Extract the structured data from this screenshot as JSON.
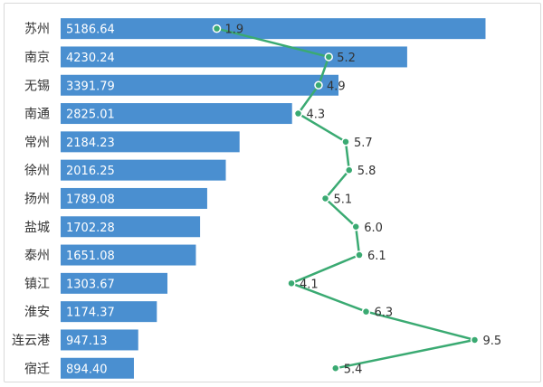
{
  "chart_data": {
    "type": "bar+line",
    "title": "",
    "categories": [
      "苏州",
      "南京",
      "无锡",
      "南通",
      "常州",
      "徐州",
      "扬州",
      "盐城",
      "泰州",
      "镇江",
      "淮安",
      "连云港",
      "宿迁"
    ],
    "series": [
      {
        "name": "bars",
        "type": "bar",
        "orientation": "horizontal",
        "values": [
          5186.64,
          4230.24,
          3391.79,
          2825.01,
          2184.23,
          2016.25,
          1789.08,
          1702.28,
          1651.08,
          1303.67,
          1174.37,
          947.13,
          894.4
        ],
        "labels": [
          "5186.64",
          "4230.24",
          "3391.79",
          "2825.01",
          "2184.23",
          "2016.25",
          "1789.08",
          "1702.28",
          "1651.08",
          "1303.67",
          "1174.37",
          "947.13",
          "894.40"
        ]
      },
      {
        "name": "line",
        "type": "line",
        "values": [
          1.9,
          5.2,
          4.9,
          4.3,
          5.7,
          5.8,
          5.1,
          6.0,
          6.1,
          4.1,
          6.3,
          9.5,
          5.4
        ],
        "labels": [
          "1.9",
          "5.2",
          "4.9",
          "4.3",
          "5.7",
          "5.8",
          "5.1",
          "6.0",
          "6.1",
          "4.1",
          "6.3",
          "9.5",
          "5.4"
        ]
      }
    ],
    "bar_axis_range": [
      0,
      5800
    ],
    "line_axis_range": [
      -2.7,
      11.3
    ],
    "grid": false,
    "legend": "none",
    "colors": {
      "bar": "#4a8fd0",
      "line": "#3aaa72",
      "marker_fill": "#3aaa72",
      "marker_stroke": "#ffffff"
    }
  }
}
